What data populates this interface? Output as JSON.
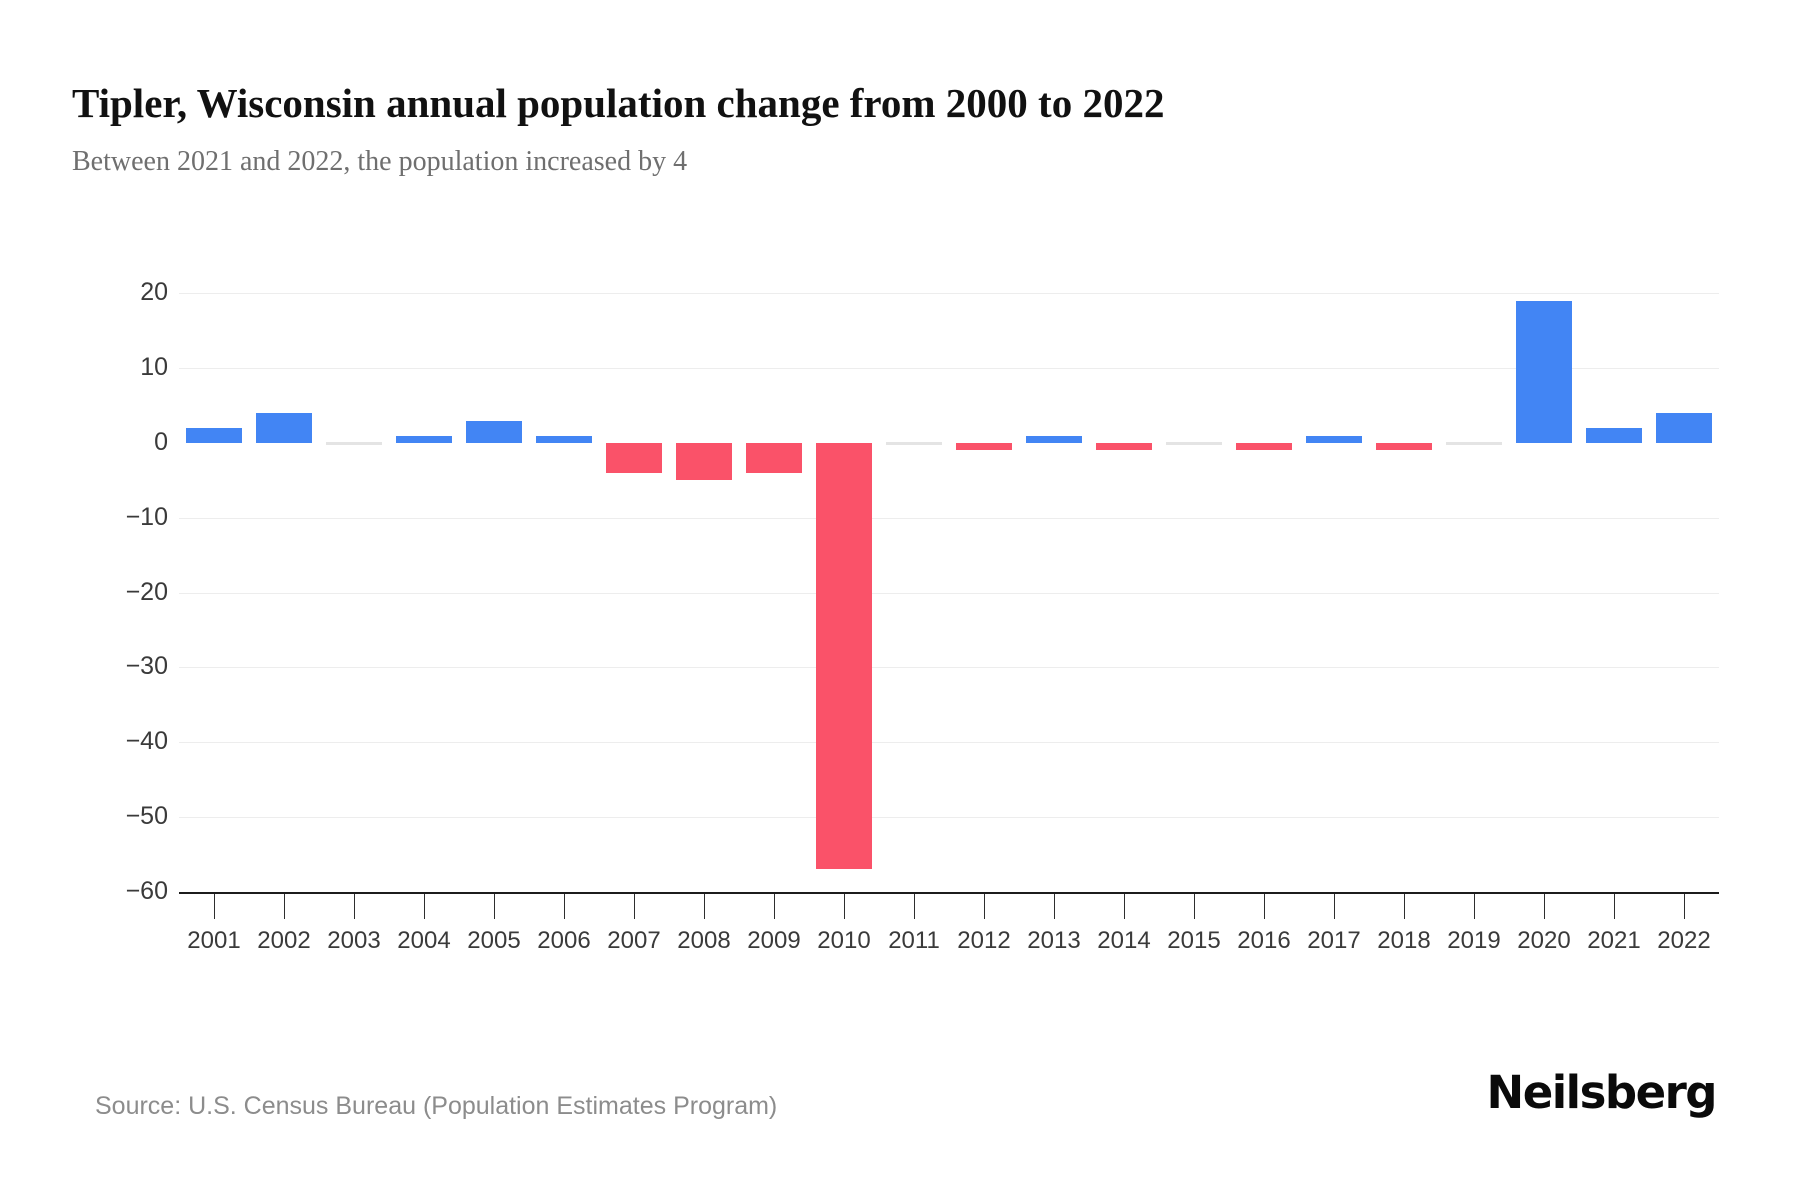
{
  "header": {
    "title": "Tipler, Wisconsin annual population change from 2000 to 2022",
    "subtitle": "Between 2021 and 2022, the population increased by 4"
  },
  "chart_data": {
    "type": "bar",
    "title": "Tipler, Wisconsin annual population change from 2000 to 2022",
    "subtitle": "Between 2021 and 2022, the population increased by 4",
    "categories": [
      "2001",
      "2002",
      "2003",
      "2004",
      "2005",
      "2006",
      "2007",
      "2008",
      "2009",
      "2010",
      "2011",
      "2012",
      "2013",
      "2014",
      "2015",
      "2016",
      "2017",
      "2018",
      "2019",
      "2020",
      "2021",
      "2022"
    ],
    "values": [
      2,
      4,
      0,
      1,
      3,
      1,
      -4,
      -5,
      -4,
      -57,
      0,
      -1,
      1,
      -1,
      0,
      -1,
      1,
      -1,
      0,
      19,
      2,
      4
    ],
    "xlabel": "",
    "ylabel": "",
    "ylim": [
      -60,
      20
    ],
    "yticks": [
      20,
      10,
      0,
      -10,
      -20,
      -30,
      -40,
      -50,
      -60
    ],
    "grid": true,
    "legend": false,
    "colors": {
      "positive": "#4285f4",
      "negative": "#fa5269",
      "zero": "#e4e4e4",
      "gridline": "#ededed",
      "axis": "#1c1c1c"
    }
  },
  "footer": {
    "source": "Source: U.S. Census Bureau (Population Estimates Program)",
    "brand": "Neilsberg"
  }
}
